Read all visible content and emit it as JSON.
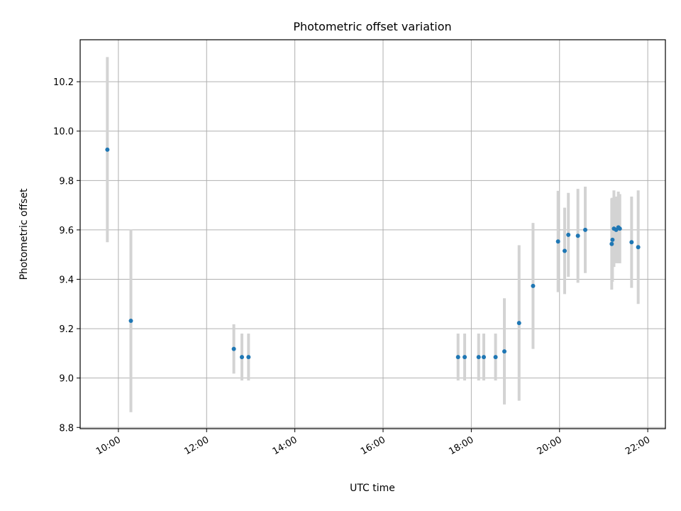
{
  "chart_data": {
    "type": "scatter",
    "title": "Photometric offset variation",
    "xlabel": "UTC time",
    "ylabel": "Photometric offset",
    "xlim": [
      "09:08",
      "22:24"
    ],
    "ylim": [
      8.795,
      10.37
    ],
    "grid": true,
    "xticks": [
      "10:00",
      "12:00",
      "14:00",
      "16:00",
      "18:00",
      "20:00",
      "22:00"
    ],
    "yticks": [
      "8.8",
      "9.0",
      "9.2",
      "9.4",
      "9.6",
      "9.8",
      "10.0",
      "10.2"
    ],
    "series": [
      {
        "marker_color": "#1f77b4",
        "errorbar_color": "#d3d3d3",
        "points": [
          {
            "x": "09:45",
            "y": 9.925,
            "yerr": 0.375
          },
          {
            "x": "10:17",
            "y": 9.232,
            "yerr": 0.37
          },
          {
            "x": "12:37",
            "y": 9.118,
            "yerr": 0.1
          },
          {
            "x": "12:48",
            "y": 9.085,
            "yerr": 0.095
          },
          {
            "x": "12:57",
            "y": 9.085,
            "yerr": 0.095
          },
          {
            "x": "17:42",
            "y": 9.085,
            "yerr": 0.095
          },
          {
            "x": "17:51",
            "y": 9.085,
            "yerr": 0.095
          },
          {
            "x": "18:10",
            "y": 9.085,
            "yerr": 0.095
          },
          {
            "x": "18:17",
            "y": 9.085,
            "yerr": 0.095
          },
          {
            "x": "18:33",
            "y": 9.085,
            "yerr": 0.095
          },
          {
            "x": "18:45",
            "y": 9.108,
            "yerr": 0.215
          },
          {
            "x": "19:05",
            "y": 9.223,
            "yerr": 0.315
          },
          {
            "x": "19:24",
            "y": 9.373,
            "yerr": 0.255
          },
          {
            "x": "19:58",
            "y": 9.553,
            "yerr": 0.205
          },
          {
            "x": "20:07",
            "y": 9.515,
            "yerr": 0.175
          },
          {
            "x": "20:12",
            "y": 9.58,
            "yerr": 0.17
          },
          {
            "x": "20:25",
            "y": 9.576,
            "yerr": 0.19
          },
          {
            "x": "20:35",
            "y": 9.6,
            "yerr": 0.175
          },
          {
            "x": "21:11",
            "y": 9.543,
            "yerr": 0.185
          },
          {
            "x": "21:12",
            "y": 9.56,
            "yerr": 0.17
          },
          {
            "x": "21:14",
            "y": 9.605,
            "yerr": 0.155
          },
          {
            "x": "21:17",
            "y": 9.6,
            "yerr": 0.135
          },
          {
            "x": "21:20",
            "y": 9.61,
            "yerr": 0.145
          },
          {
            "x": "21:22",
            "y": 9.605,
            "yerr": 0.14
          },
          {
            "x": "21:38",
            "y": 9.55,
            "yerr": 0.185
          },
          {
            "x": "21:47",
            "y": 9.53,
            "yerr": 0.23
          }
        ]
      }
    ]
  }
}
